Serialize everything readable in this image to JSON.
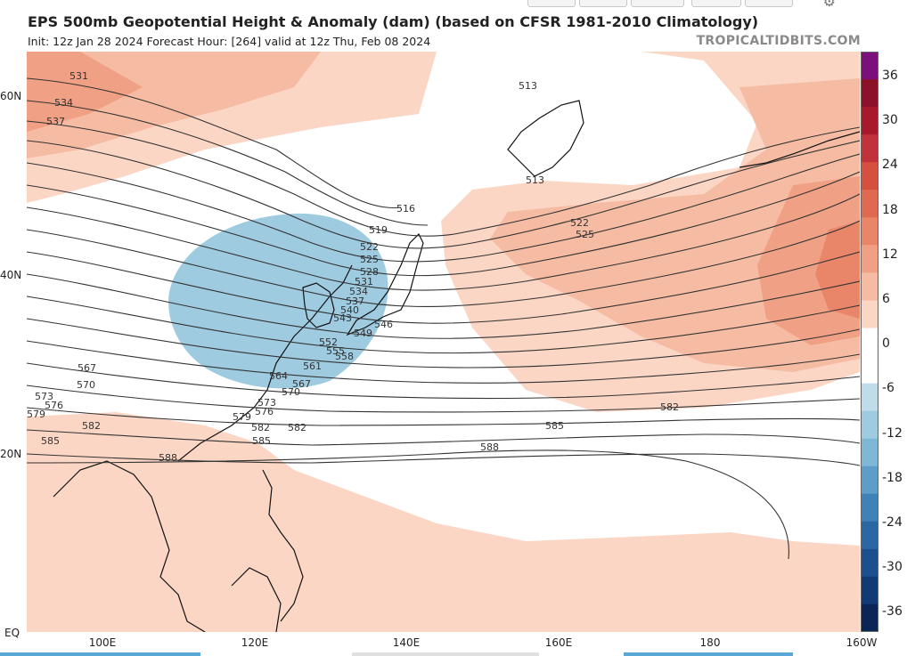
{
  "header": {
    "title": "EPS 500mb Geopotential Height & Anomaly (dam) (based on CFSR 1981-2010 Climatology)",
    "subtitle": "Init: 12z Jan 28 2024   Forecast Hour: [264]   valid at 12z Thu, Feb 08 2024",
    "brand": "TROPICALTIDBITS.COM"
  },
  "lat_labels": [
    "60N",
    "40N",
    "20N",
    "EQ"
  ],
  "lon_labels": [
    "100E",
    "120E",
    "140E",
    "160E",
    "180",
    "160W"
  ],
  "colorbar": {
    "labels": [
      "36",
      "30",
      "24",
      "18",
      "12",
      "6",
      "0",
      "-6",
      "-12",
      "-18",
      "-24",
      "-30",
      "-36"
    ],
    "colors": [
      "#7b0f7b",
      "#8b1228",
      "#a8192c",
      "#c2323a",
      "#d6503f",
      "#e06a51",
      "#e98569",
      "#f0a084",
      "#f6bca3",
      "#fbd6c5",
      "#ffffff",
      "#ffffff",
      "#c0dcea",
      "#9fcbe0",
      "#7fb7d6",
      "#5d9dc8",
      "#3f82b8",
      "#2a67a4",
      "#1c4f8e",
      "#123a74",
      "#0b2556"
    ]
  },
  "map": {
    "contour_labels": [
      "513",
      "513",
      "516",
      "519",
      "522",
      "522",
      "525",
      "525",
      "528",
      "531",
      "531",
      "534",
      "534",
      "537",
      "537",
      "540",
      "543",
      "546",
      "549",
      "552",
      "555",
      "558",
      "561",
      "564",
      "567",
      "567",
      "570",
      "570",
      "573",
      "573",
      "576",
      "576",
      "579",
      "579",
      "582",
      "582",
      "582",
      "582",
      "585",
      "585",
      "585",
      "588",
      "588"
    ],
    "anomaly_colors": {
      "pos_light": "#fbd6c5",
      "pos_mid": "#f6bca3",
      "pos_strong": "#f0a084",
      "pos_stronger": "#e98569",
      "neg_light": "#9fcbe0",
      "land_line": "#111111",
      "contour": "#333333"
    }
  }
}
